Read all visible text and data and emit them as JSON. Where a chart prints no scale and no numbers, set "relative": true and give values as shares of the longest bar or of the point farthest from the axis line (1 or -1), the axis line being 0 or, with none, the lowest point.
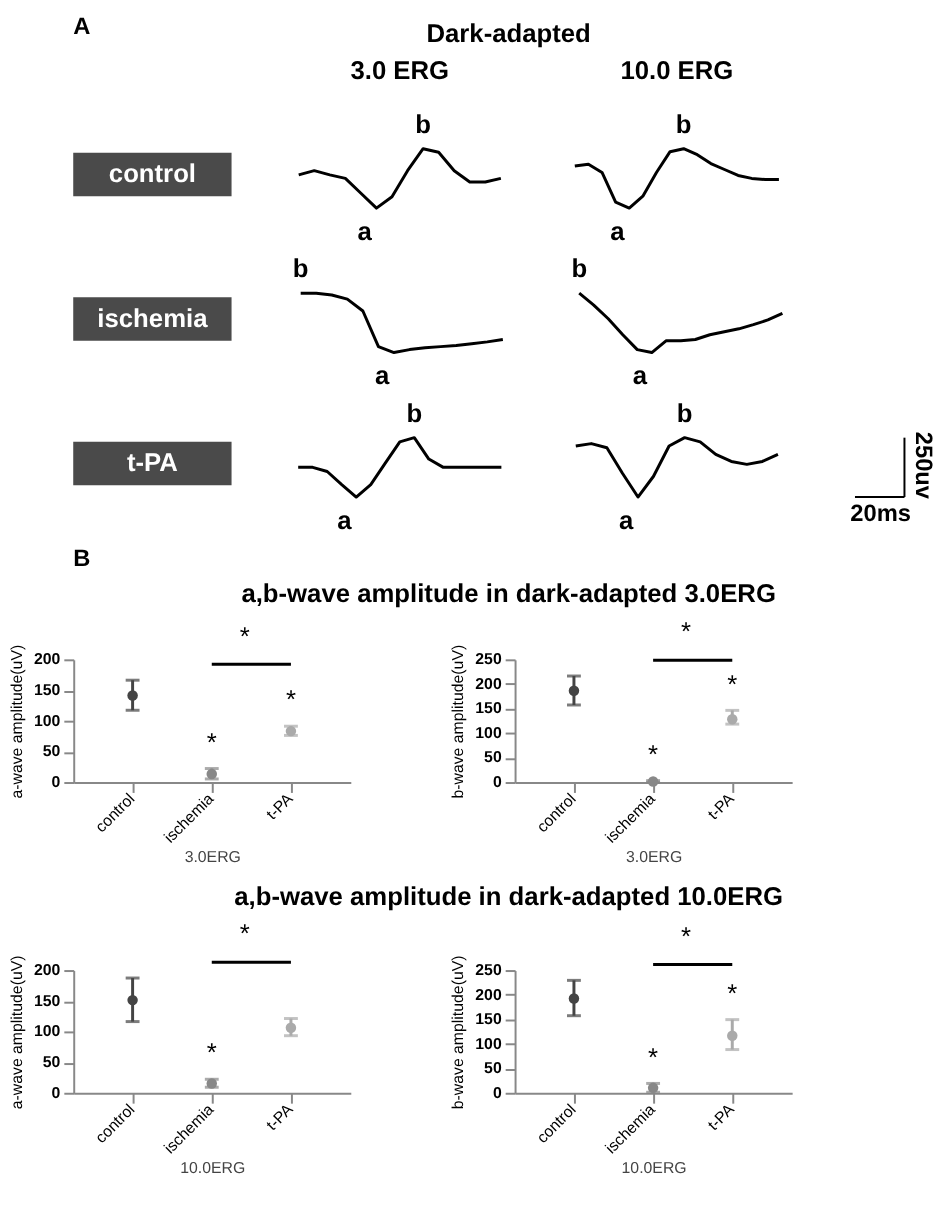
{
  "chart_data": [
    {
      "type": "other",
      "title": "Dark-adapted",
      "annotations": [
        "A"
      ]
    },
    {
      "type": "line",
      "relative": true,
      "title": "3.0 ERG",
      "ylabel": "control",
      "color": "#000000",
      "categories": [
        null,
        null,
        null,
        null,
        null,
        null,
        null,
        null,
        null,
        null,
        null,
        null,
        null,
        null
      ],
      "values": [
        0.56,
        0.63,
        0.56,
        0.5,
        0.25,
        0,
        0.19,
        0.63,
        1,
        0.94,
        0.63,
        0.44,
        0.44,
        0.5
      ],
      "annotations": [
        "a",
        "b"
      ]
    },
    {
      "type": "line",
      "relative": true,
      "title": "10.0 ERG",
      "color": "#000000",
      "categories": [
        null,
        null,
        null,
        null,
        null,
        null,
        null,
        null,
        null,
        null,
        null,
        null,
        null,
        null,
        null,
        null
      ],
      "values": [
        0.71,
        0.74,
        0.6,
        0.1,
        0,
        0.2,
        0.6,
        0.95,
        1,
        0.9,
        0.75,
        0.65,
        0.55,
        0.5,
        0.48,
        0.48
      ],
      "annotations": [
        "a",
        "b"
      ]
    },
    {
      "type": "line",
      "relative": true,
      "ylabel": "ischemia",
      "color": "#000000",
      "categories": [
        null,
        null,
        null,
        null,
        null,
        null,
        null,
        null,
        null,
        null,
        null,
        null,
        null,
        null
      ],
      "values": [
        1,
        1,
        0.97,
        0.9,
        0.7,
        0.1,
        0,
        0.05,
        0.08,
        0.1,
        0.12,
        0.15,
        0.18,
        0.22
      ],
      "annotations": [
        "a",
        "b"
      ]
    },
    {
      "type": "line",
      "relative": true,
      "color": "#000000",
      "categories": [
        null,
        null,
        null,
        null,
        null,
        null,
        null,
        null,
        null,
        null,
        null,
        null,
        null,
        null,
        null
      ],
      "values": [
        1,
        0.8,
        0.57,
        0.3,
        0.05,
        0,
        0.2,
        0.2,
        0.22,
        0.3,
        0.35,
        0.4,
        0.47,
        0.55,
        0.66
      ],
      "annotations": [
        "a",
        "b"
      ]
    },
    {
      "type": "line",
      "relative": true,
      "ylabel": "t-PA",
      "color": "#000000",
      "categories": [
        null,
        null,
        null,
        null,
        null,
        null,
        null,
        null,
        null,
        null,
        null,
        null,
        null,
        null,
        null
      ],
      "values": [
        0.5,
        0.5,
        0.43,
        0.21,
        0,
        0.21,
        0.57,
        0.93,
        1,
        0.64,
        0.5,
        0.5,
        0.5,
        0.5,
        0.5
      ],
      "annotations": [
        "a",
        "b"
      ]
    },
    {
      "type": "line",
      "relative": true,
      "color": "#000000",
      "categories": [
        null,
        null,
        null,
        null,
        null,
        null,
        null,
        null,
        null,
        null,
        null,
        null,
        null,
        null
      ],
      "values": [
        0.86,
        0.9,
        0.83,
        0.4,
        0,
        0.35,
        0.86,
        1,
        0.93,
        0.72,
        0.6,
        0.55,
        0.6,
        0.72
      ],
      "annotations": [
        "a",
        "b",
        "250uv",
        "20ms"
      ]
    },
    {
      "type": "other",
      "title": "a,b-wave amplitude in dark-adapted 3.0ERG",
      "annotations": [
        "B"
      ]
    },
    {
      "type": "scatter",
      "marker": "circle",
      "categories": [
        "control",
        "ischemia",
        "t-PA"
      ],
      "values": [
        141,
        13,
        83
      ],
      "errors": [
        [
          117,
          166
        ],
        [
          5,
          22
        ],
        [
          76,
          91
        ]
      ],
      "colors": [
        "#444444",
        "#888888",
        "#aaaaaa"
      ],
      "ylim": [
        0,
        200
      ],
      "yticks": [
        0,
        50,
        100,
        150,
        200
      ],
      "ylabel": "a-wave amplitude(uV)",
      "xlabel": "3.0ERG",
      "annotations": [
        "*",
        "*",
        "*"
      ]
    },
    {
      "type": "scatter",
      "marker": "circle",
      "categories": [
        "control",
        "ischemia",
        "t-PA"
      ],
      "values": [
        186,
        1,
        128
      ],
      "errors": [
        [
          157,
          216
        ],
        [
          0,
          3
        ],
        [
          118,
          146
        ]
      ],
      "colors": [
        "#444444",
        "#888888",
        "#aaaaaa"
      ],
      "ylim": [
        0,
        250
      ],
      "yticks": [
        0,
        50,
        100,
        150,
        200,
        250
      ],
      "ylabel": "b-wave amplitude(uV)",
      "xlabel": "3.0ERG",
      "annotations": [
        "*",
        "*",
        "*"
      ]
    },
    {
      "type": "other",
      "title": "a,b-wave amplitude in dark-adapted 10.0ERG"
    },
    {
      "type": "scatter",
      "marker": "circle",
      "categories": [
        "control",
        "ischemia",
        "t-PA"
      ],
      "values": [
        151,
        15,
        106
      ],
      "errors": [
        [
          116,
          187
        ],
        [
          9,
          22
        ],
        [
          93,
          121
        ]
      ],
      "colors": [
        "#444444",
        "#888888",
        "#aaaaaa"
      ],
      "ylim": [
        0,
        200
      ],
      "yticks": [
        0,
        50,
        100,
        150,
        200
      ],
      "ylabel": "a-wave amplitude(uV)",
      "xlabel": "10.0ERG",
      "annotations": [
        "*",
        "*"
      ]
    },
    {
      "type": "scatter",
      "marker": "circle",
      "categories": [
        "control",
        "ischemia",
        "t-PA"
      ],
      "values": [
        192,
        10,
        116
      ],
      "errors": [
        [
          157,
          229
        ],
        [
          1,
          19
        ],
        [
          88,
          149
        ]
      ],
      "colors": [
        "#444444",
        "#888888",
        "#aaaaaa"
      ],
      "ylim": [
        0,
        250
      ],
      "yticks": [
        0,
        50,
        100,
        150,
        200,
        250
      ],
      "ylabel": "b-wave amplitude(uV)",
      "xlabel": "10.0ERG",
      "annotations": [
        "*",
        "*",
        "*"
      ]
    }
  ]
}
